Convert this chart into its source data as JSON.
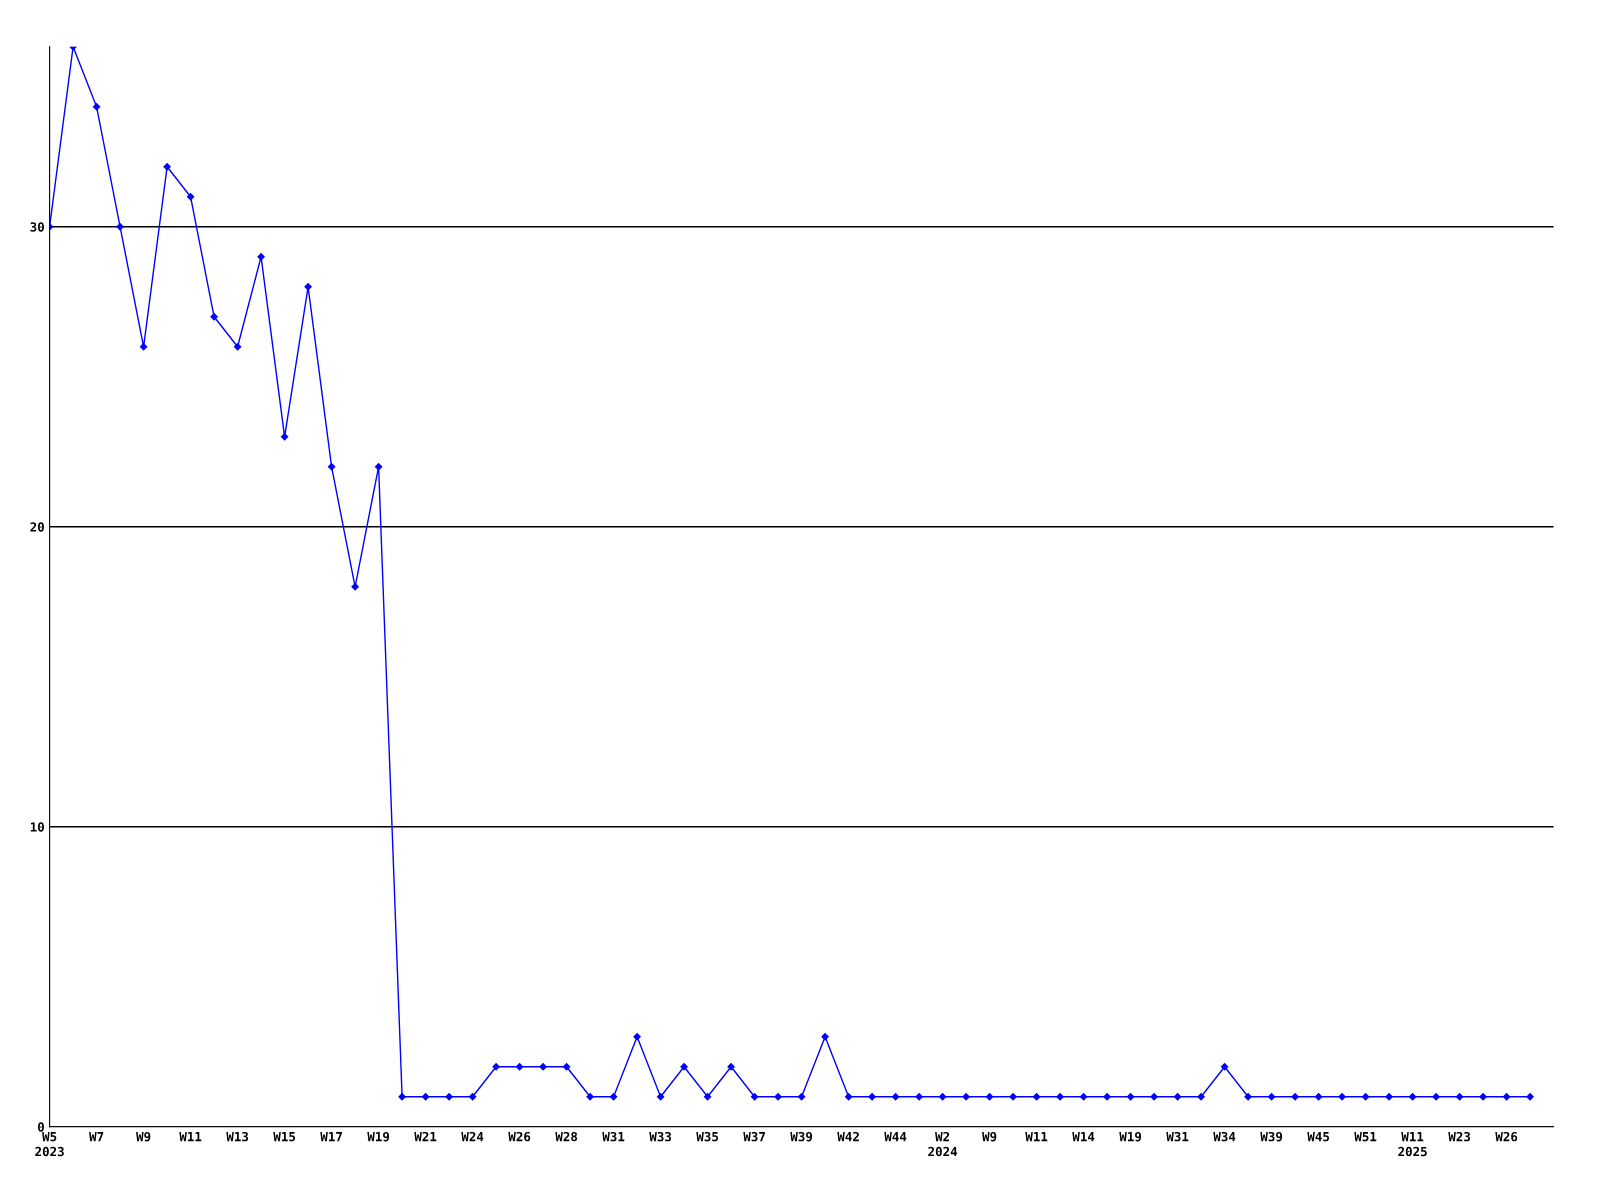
{
  "chart_data": {
    "type": "line",
    "categories": [
      "W5\n2023",
      null,
      "W7",
      null,
      "W9",
      null,
      "W11",
      null,
      "W13",
      null,
      "W15",
      null,
      "W17",
      null,
      "W19",
      null,
      "W21",
      null,
      "W24",
      null,
      "W26",
      null,
      "W28",
      null,
      "W31",
      null,
      "W33",
      null,
      "W35",
      null,
      "W37",
      null,
      "W39",
      null,
      "W42",
      null,
      "W44",
      null,
      "W2\n2024",
      null,
      "W9",
      null,
      "W11",
      null,
      "W14",
      null,
      "W19",
      null,
      "W31",
      null,
      "W34",
      null,
      "W39",
      null,
      "W45",
      null,
      "W51",
      null,
      "W11\n2025",
      null,
      "W23",
      null,
      "W26",
      null
    ],
    "series": [
      {
        "color": "#0000ff",
        "values": [
          30,
          36,
          34,
          30,
          26,
          32,
          31,
          27,
          26,
          29,
          23,
          28,
          22,
          18,
          22,
          1,
          1,
          1,
          1,
          2,
          2,
          2,
          2,
          1,
          1,
          3,
          1,
          2,
          1,
          2,
          1,
          1,
          1,
          3,
          1,
          1,
          1,
          1,
          1,
          1,
          1,
          1,
          1,
          1,
          1,
          1,
          1,
          1,
          1,
          1,
          2,
          1,
          1,
          1,
          1,
          1,
          1,
          1,
          1,
          1,
          1,
          1,
          1,
          1
        ]
      }
    ],
    "ylim": [
      0,
      36
    ],
    "yticks": [
      0,
      10,
      20,
      30
    ],
    "grid": "y",
    "marker": "diamond",
    "line_style": "solid",
    "legend": false
  }
}
